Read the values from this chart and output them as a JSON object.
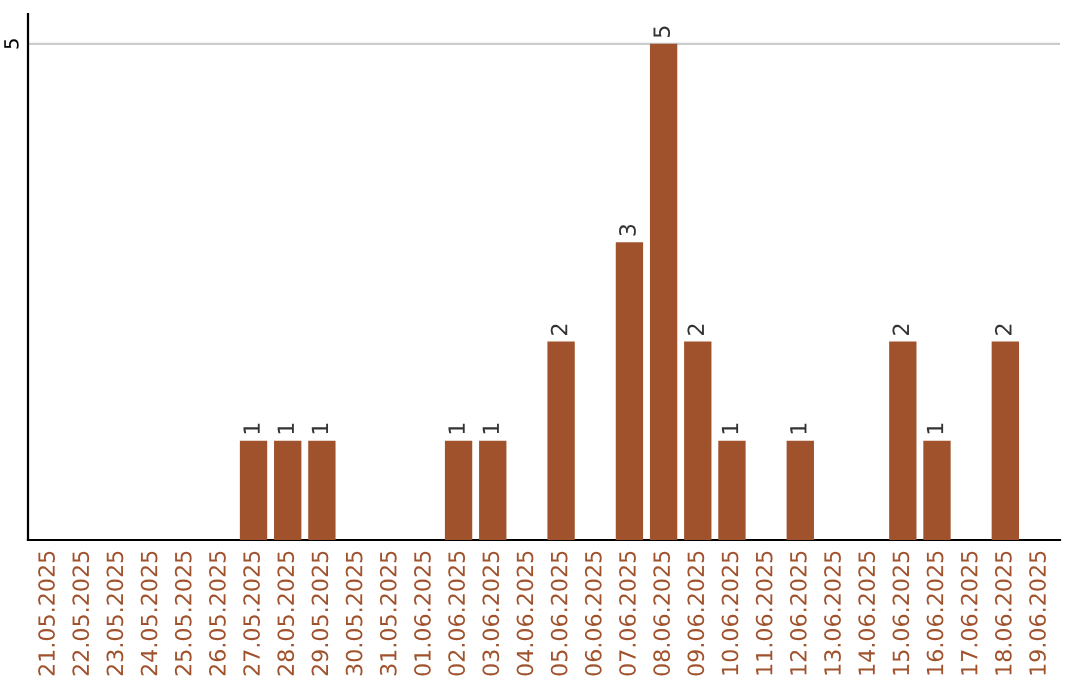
{
  "chart_data": {
    "type": "bar",
    "categories": [
      "21.05.2025",
      "22.05.2025",
      "23.05.2025",
      "24.05.2025",
      "25.05.2025",
      "26.05.2025",
      "27.05.2025",
      "28.05.2025",
      "29.05.2025",
      "30.05.2025",
      "31.05.2025",
      "01.06.2025",
      "02.06.2025",
      "03.06.2025",
      "04.06.2025",
      "05.06.2025",
      "06.06.2025",
      "07.06.2025",
      "08.06.2025",
      "09.06.2025",
      "10.06.2025",
      "11.06.2025",
      "12.06.2025",
      "13.06.2025",
      "14.06.2025",
      "15.06.2025",
      "16.06.2025",
      "17.06.2025",
      "18.06.2025",
      "19.06.2025"
    ],
    "values": [
      null,
      null,
      null,
      null,
      null,
      null,
      1,
      1,
      1,
      null,
      null,
      null,
      1,
      1,
      null,
      2,
      null,
      3,
      5,
      2,
      1,
      null,
      1,
      null,
      null,
      2,
      1,
      null,
      2,
      null
    ],
    "color": "#a0522d",
    "ylim": [
      0,
      5.3
    ],
    "yticks": [
      5
    ],
    "grid": "y",
    "data_labels": true
  }
}
